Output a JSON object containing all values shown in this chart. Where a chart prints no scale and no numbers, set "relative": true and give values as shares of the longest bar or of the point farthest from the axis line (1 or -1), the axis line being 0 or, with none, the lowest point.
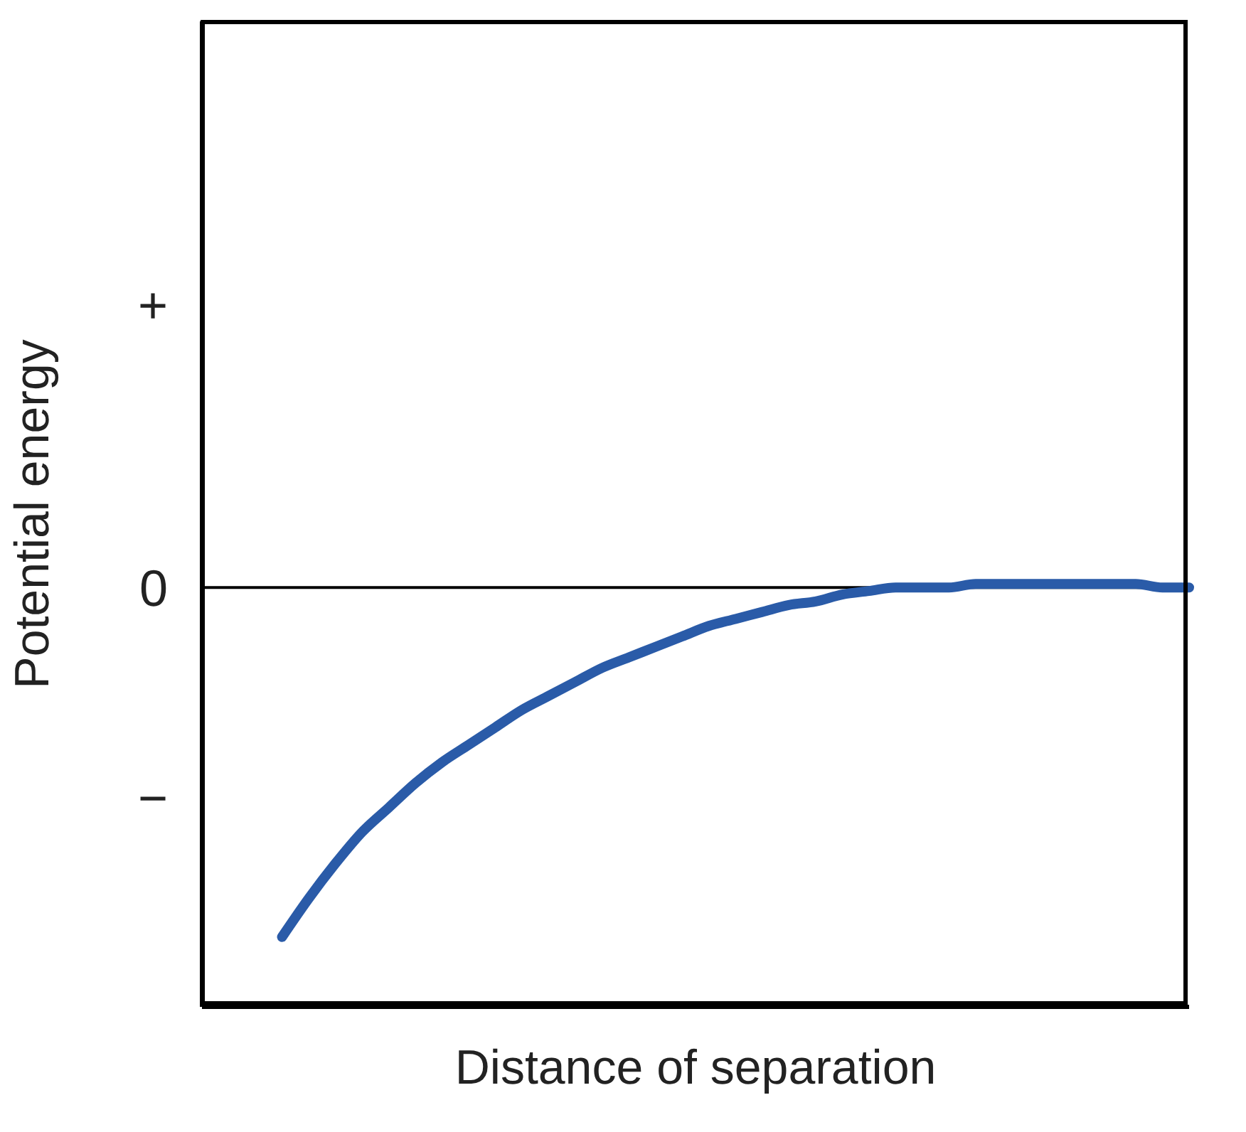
{
  "chart_data": {
    "type": "line",
    "xlabel": "Distance of separation",
    "ylabel": "Potential energy",
    "relative": true,
    "categories": [
      null,
      null,
      null,
      null,
      null,
      null,
      null,
      null,
      null,
      null,
      null,
      null,
      null,
      null,
      null,
      null,
      null,
      null,
      null,
      null,
      null,
      null,
      null,
      null,
      null,
      null,
      null,
      null,
      null,
      null,
      null,
      null,
      null,
      null,
      null,
      null,
      null,
      null
    ],
    "ylim": [
      -1.2,
      1.62
    ],
    "annotations": [
      "+",
      "0",
      "−"
    ],
    "ref_lines": [
      {
        "axis": "y",
        "value": 0,
        "color": "#000000"
      }
    ],
    "series": [
      {
        "color": "#2a5ba8",
        "values": [
          null,
          null,
          null,
          -1,
          -0.89,
          -0.79,
          -0.7,
          -0.63,
          -0.56,
          -0.5,
          -0.45,
          -0.4,
          -0.35,
          -0.31,
          -0.27,
          -0.23,
          -0.2,
          -0.17,
          -0.14,
          -0.11,
          -0.09,
          -0.07,
          -0.05,
          -0.04,
          -0.02,
          -0.01,
          0,
          0,
          0,
          0.01,
          0.01,
          0.01,
          0.01,
          0.01,
          0.01,
          0.01,
          0,
          0
        ]
      }
    ],
    "grid": false,
    "legend": false,
    "marker": "none",
    "line_style": "solid"
  }
}
